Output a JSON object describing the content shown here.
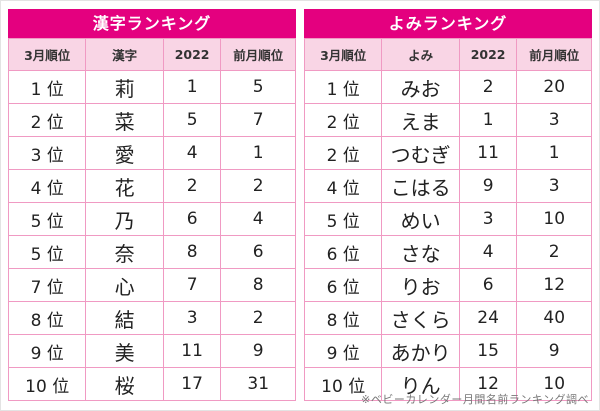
{
  "chart_data": [
    {
      "type": "table",
      "title": "漢字ランキング",
      "columns": [
        "3月順位",
        "漢字",
        "2022",
        "前月順位"
      ],
      "rows": [
        [
          "1 位",
          "莉",
          "1",
          "5"
        ],
        [
          "2 位",
          "菜",
          "5",
          "7"
        ],
        [
          "3 位",
          "愛",
          "4",
          "1"
        ],
        [
          "4 位",
          "花",
          "2",
          "2"
        ],
        [
          "5 位",
          "乃",
          "6",
          "4"
        ],
        [
          "5 位",
          "奈",
          "8",
          "6"
        ],
        [
          "7 位",
          "心",
          "7",
          "8"
        ],
        [
          "8 位",
          "結",
          "3",
          "2"
        ],
        [
          "9 位",
          "美",
          "11",
          "9"
        ],
        [
          "10 位",
          "桜",
          "17",
          "31"
        ]
      ]
    },
    {
      "type": "table",
      "title": "よみランキング",
      "columns": [
        "3月順位",
        "よみ",
        "2022",
        "前月順位"
      ],
      "rows": [
        [
          "1 位",
          "みお",
          "2",
          "20"
        ],
        [
          "2 位",
          "えま",
          "1",
          "3"
        ],
        [
          "2 位",
          "つむぎ",
          "11",
          "1"
        ],
        [
          "4 位",
          "こはる",
          "9",
          "3"
        ],
        [
          "5 位",
          "めい",
          "3",
          "10"
        ],
        [
          "6 位",
          "さな",
          "4",
          "2"
        ],
        [
          "6 位",
          "りお",
          "6",
          "12"
        ],
        [
          "8 位",
          "さくら",
          "24",
          "40"
        ],
        [
          "9 位",
          "あかり",
          "15",
          "9"
        ],
        [
          "10 位",
          "りん",
          "12",
          "10"
        ]
      ]
    }
  ],
  "footnote": "※ベビーカレンダー月間名前ランキング調べ",
  "colors": {
    "title_bg": "#e4007f",
    "header_bg": "#f9d5e5",
    "border": "#f09ac3",
    "body_text": "#222222",
    "footnote_text": "#777777"
  }
}
